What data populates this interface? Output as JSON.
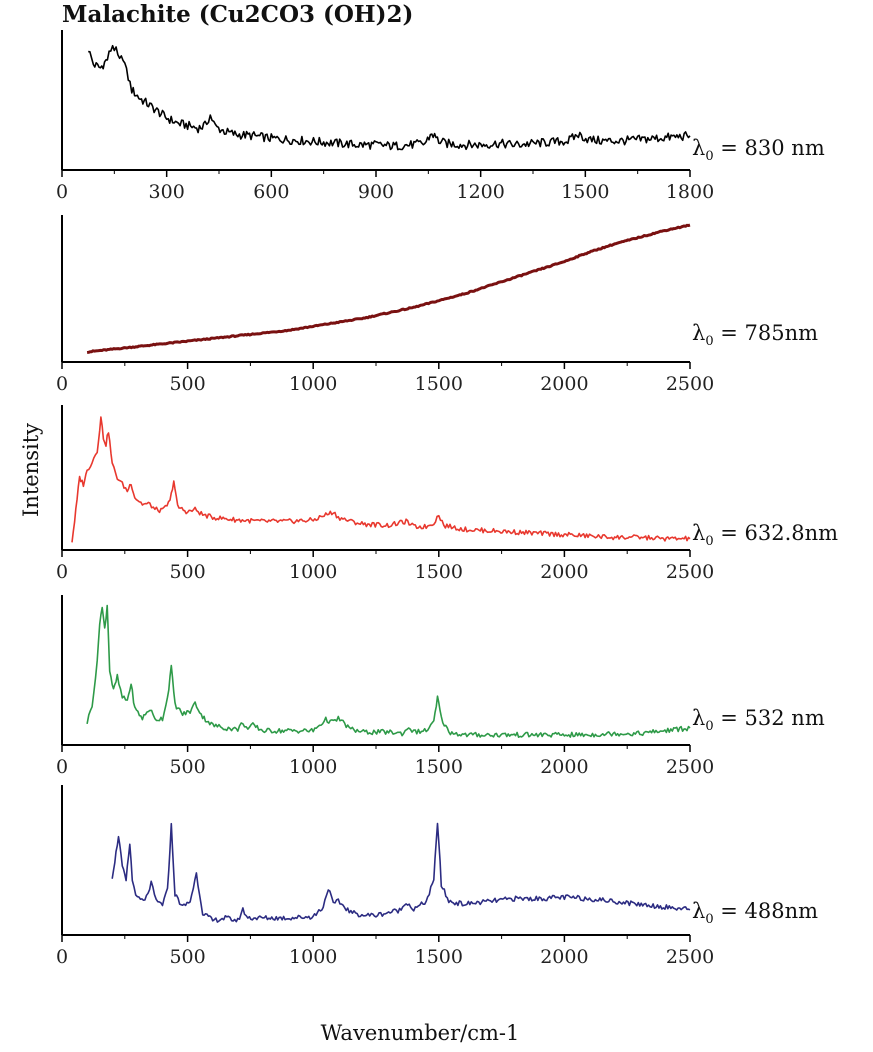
{
  "chart_data": {
    "type": "line",
    "title": "Malachite (Cu2CO3 (OH)2)",
    "xlabel": "Wavenumber/cm-1",
    "ylabel": "Intensity",
    "panels": [
      {
        "laser": "λ0 = 830 nm",
        "color": "#000000",
        "xlim": [
          0,
          1800
        ],
        "xticks": [
          0,
          300,
          600,
          900,
          1200,
          1500,
          1800
        ],
        "series": {
          "x": [
            75,
            90,
            110,
            130,
            145,
            155,
            165,
            175,
            185,
            200,
            220,
            240,
            260,
            280,
            300,
            330,
            360,
            390,
            410,
            425,
            440,
            470,
            500,
            550,
            600,
            650,
            700,
            750,
            800,
            850,
            900,
            950,
            1000,
            1040,
            1060,
            1080,
            1100,
            1150,
            1200,
            1250,
            1300,
            1350,
            1400,
            1450,
            1480,
            1510,
            1550,
            1600,
            1650,
            1700,
            1750,
            1800
          ],
          "y": [
            0.9,
            0.78,
            0.75,
            0.82,
            0.93,
            0.88,
            0.8,
            0.84,
            0.72,
            0.58,
            0.52,
            0.48,
            0.44,
            0.4,
            0.36,
            0.32,
            0.3,
            0.28,
            0.3,
            0.38,
            0.29,
            0.25,
            0.23,
            0.22,
            0.2,
            0.19,
            0.18,
            0.17,
            0.16,
            0.15,
            0.15,
            0.14,
            0.15,
            0.16,
            0.24,
            0.18,
            0.16,
            0.15,
            0.15,
            0.16,
            0.15,
            0.16,
            0.17,
            0.18,
            0.23,
            0.19,
            0.18,
            0.18,
            0.19,
            0.2,
            0.21,
            0.22
          ]
        }
      },
      {
        "laser": "λ0 = 785nm",
        "color": "#7a1111",
        "xlim": [
          0,
          2500
        ],
        "xticks": [
          0,
          500,
          1000,
          1500,
          2000,
          2500
        ],
        "series": {
          "x": [
            100,
            200,
            300,
            400,
            500,
            600,
            700,
            800,
            900,
            1000,
            1100,
            1200,
            1300,
            1400,
            1500,
            1600,
            1700,
            1800,
            1900,
            2000,
            2100,
            2200,
            2300,
            2400,
            2500
          ],
          "y": [
            0.03,
            0.05,
            0.07,
            0.09,
            0.11,
            0.13,
            0.15,
            0.17,
            0.19,
            0.22,
            0.25,
            0.28,
            0.32,
            0.36,
            0.41,
            0.46,
            0.52,
            0.58,
            0.64,
            0.7,
            0.77,
            0.83,
            0.88,
            0.93,
            0.97
          ]
        }
      },
      {
        "laser": "λ0 = 632.8nm",
        "color": "#e8382e",
        "xlim": [
          0,
          2500
        ],
        "xticks": [
          0,
          500,
          1000,
          1500,
          2000,
          2500
        ],
        "series": {
          "x": [
            40,
            55,
            70,
            85,
            100,
            120,
            140,
            155,
            165,
            175,
            185,
            200,
            220,
            240,
            260,
            275,
            290,
            320,
            350,
            370,
            400,
            430,
            445,
            460,
            500,
            530,
            560,
            600,
            700,
            800,
            900,
            1000,
            1050,
            1080,
            1100,
            1150,
            1200,
            1300,
            1370,
            1400,
            1450,
            1480,
            1500,
            1520,
            1600,
            1700,
            1800,
            1900,
            2000,
            2100,
            2200,
            2300,
            2400,
            2500
          ],
          "y": [
            0.02,
            0.25,
            0.5,
            0.45,
            0.55,
            0.62,
            0.7,
            0.95,
            0.8,
            0.75,
            0.85,
            0.6,
            0.5,
            0.45,
            0.4,
            0.46,
            0.35,
            0.3,
            0.3,
            0.26,
            0.25,
            0.32,
            0.48,
            0.28,
            0.24,
            0.26,
            0.22,
            0.2,
            0.18,
            0.17,
            0.17,
            0.18,
            0.22,
            0.24,
            0.2,
            0.17,
            0.15,
            0.14,
            0.17,
            0.13,
            0.13,
            0.16,
            0.22,
            0.14,
            0.11,
            0.1,
            0.09,
            0.08,
            0.07,
            0.06,
            0.05,
            0.05,
            0.04,
            0.04
          ]
        }
      },
      {
        "laser": "λ0 = 532 nm",
        "color": "#2e9a48",
        "xlim": [
          0,
          2500
        ],
        "xticks": [
          0,
          500,
          1000,
          1500,
          2000,
          2500
        ],
        "series": {
          "x": [
            100,
            120,
            140,
            150,
            160,
            170,
            180,
            190,
            205,
            220,
            240,
            260,
            275,
            290,
            320,
            350,
            370,
            400,
            420,
            435,
            450,
            480,
            510,
            530,
            560,
            600,
            650,
            700,
            720,
            740,
            760,
            800,
            900,
            1000,
            1050,
            1080,
            1100,
            1150,
            1200,
            1300,
            1360,
            1380,
            1400,
            1450,
            1480,
            1495,
            1510,
            1540,
            1600,
            1700,
            1800,
            1900,
            2000,
            2100,
            2200,
            2300,
            2400,
            2500
          ],
          "y": [
            0.12,
            0.25,
            0.55,
            0.85,
            0.95,
            0.8,
            0.97,
            0.5,
            0.35,
            0.45,
            0.3,
            0.28,
            0.4,
            0.22,
            0.15,
            0.22,
            0.14,
            0.15,
            0.3,
            0.52,
            0.25,
            0.18,
            0.2,
            0.26,
            0.16,
            0.1,
            0.08,
            0.07,
            0.12,
            0.07,
            0.1,
            0.06,
            0.06,
            0.06,
            0.14,
            0.12,
            0.15,
            0.07,
            0.05,
            0.05,
            0.04,
            0.09,
            0.05,
            0.06,
            0.12,
            0.3,
            0.15,
            0.05,
            0.03,
            0.03,
            0.03,
            0.03,
            0.03,
            0.03,
            0.04,
            0.04,
            0.06,
            0.08
          ]
        }
      },
      {
        "laser": "λ0 = 488nm",
        "color": "#2c2c82",
        "xlim": [
          0,
          2500
        ],
        "xticks": [
          0,
          500,
          1000,
          1500,
          2000,
          2500
        ],
        "series": {
          "x": [
            200,
            215,
            225,
            240,
            255,
            270,
            280,
            300,
            330,
            355,
            375,
            400,
            420,
            435,
            450,
            480,
            510,
            535,
            560,
            600,
            650,
            700,
            720,
            740,
            800,
            900,
            1000,
            1040,
            1060,
            1080,
            1100,
            1150,
            1200,
            1250,
            1300,
            1350,
            1370,
            1400,
            1450,
            1480,
            1495,
            1510,
            1540,
            1600,
            1700,
            1800,
            1900,
            2000,
            2100,
            2200,
            2300,
            2400,
            2500
          ],
          "y": [
            0.38,
            0.55,
            0.68,
            0.45,
            0.35,
            0.62,
            0.35,
            0.22,
            0.2,
            0.33,
            0.2,
            0.18,
            0.28,
            0.75,
            0.25,
            0.16,
            0.2,
            0.4,
            0.12,
            0.06,
            0.08,
            0.06,
            0.14,
            0.08,
            0.08,
            0.08,
            0.09,
            0.16,
            0.3,
            0.18,
            0.2,
            0.12,
            0.1,
            0.1,
            0.12,
            0.14,
            0.2,
            0.14,
            0.2,
            0.35,
            0.78,
            0.32,
            0.2,
            0.18,
            0.2,
            0.22,
            0.22,
            0.23,
            0.22,
            0.2,
            0.18,
            0.16,
            0.14
          ]
        }
      }
    ]
  }
}
